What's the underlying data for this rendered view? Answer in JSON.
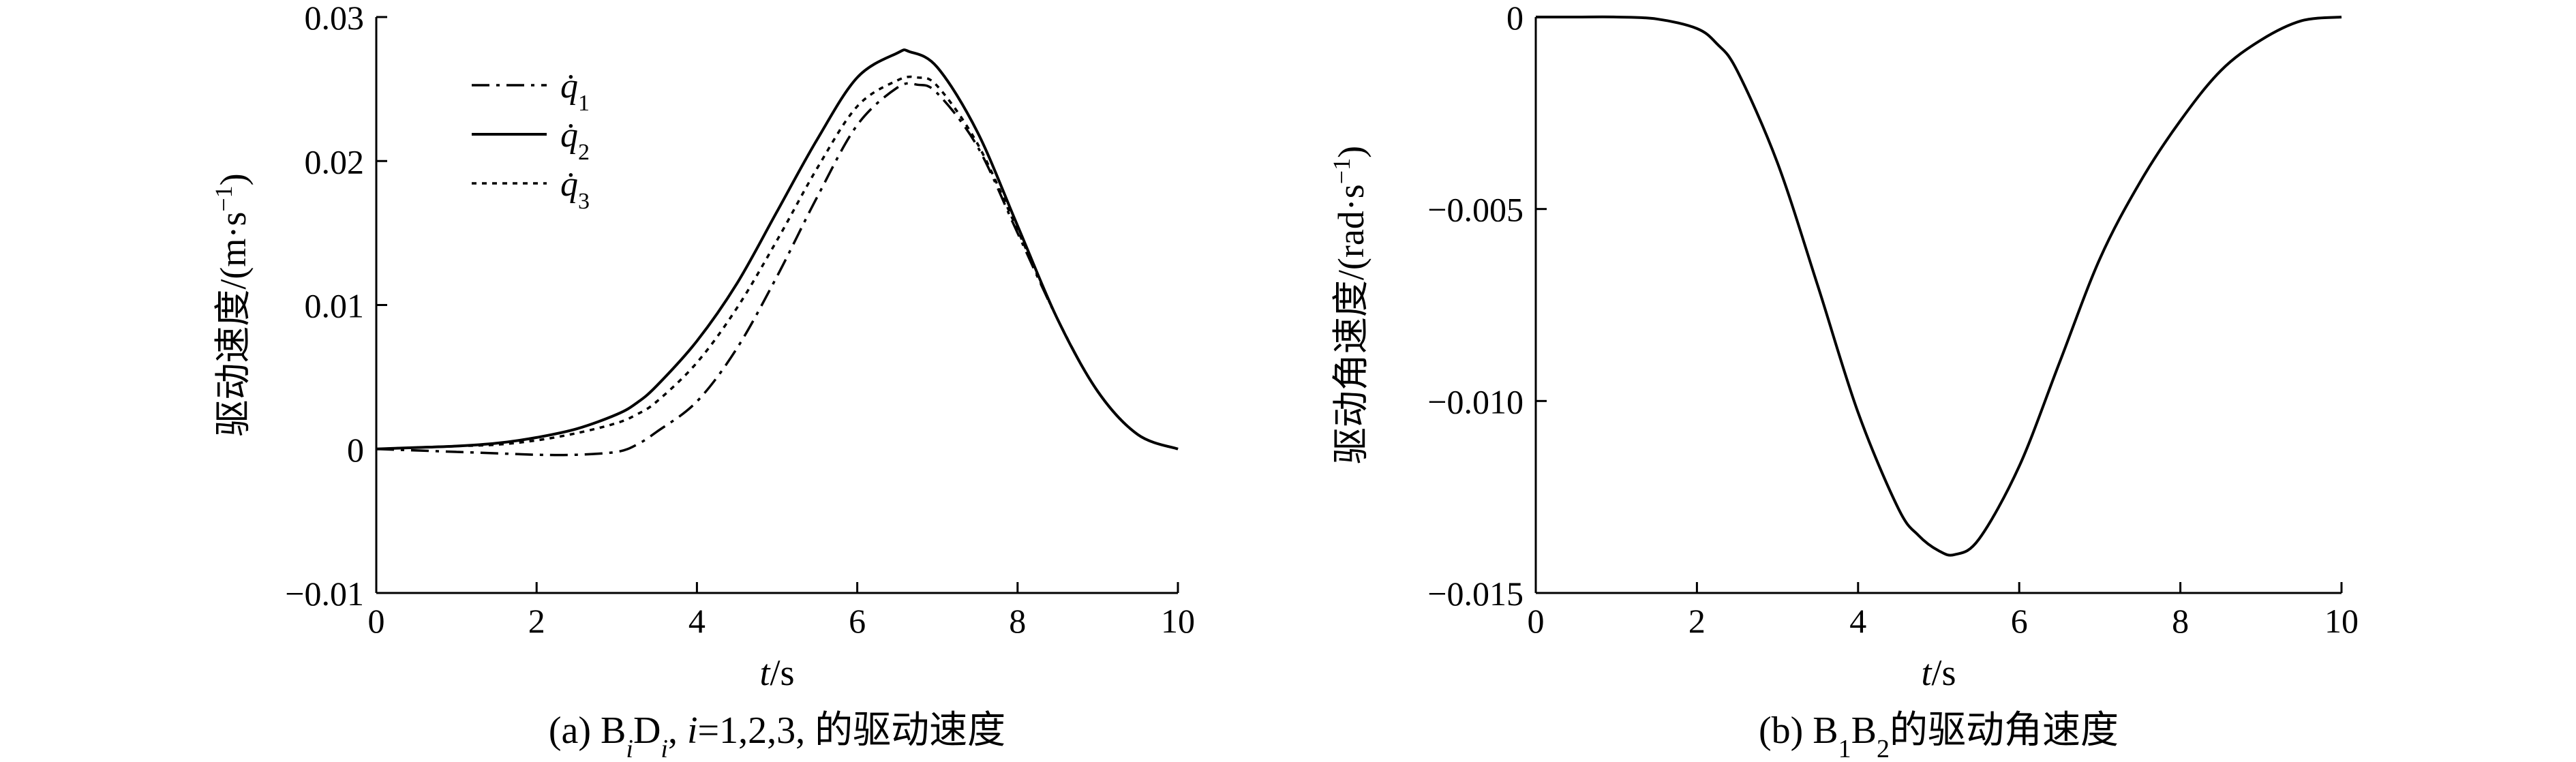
{
  "chart_data": [
    {
      "type": "line",
      "caption": "(a) B_iD_i, i=1,2,3, 的驱动速度",
      "caption_parts": {
        "prefix": "(a) B",
        "sub1": "i",
        "mid": "D",
        "sub2": "i",
        "sep": ", ",
        "ivar": "i",
        "rest": "=1,2,3, 的驱动速度"
      },
      "xlabel_var": "t",
      "xlabel_unit": "/s",
      "ylabel_main": "驱动速度/(m·s",
      "ylabel_sup": "−1",
      "ylabel_close": ")",
      "xlim": [
        0,
        10
      ],
      "ylim": [
        -0.01,
        0.03
      ],
      "xticks": [
        0,
        2,
        4,
        6,
        8,
        10
      ],
      "xtick_labels": [
        "0",
        "2",
        "4",
        "6",
        "8",
        "10"
      ],
      "yticks": [
        -0.01,
        0,
        0.01,
        0.02,
        0.03
      ],
      "ytick_labels": [
        "−0.01",
        "0",
        "0.01",
        "0.02",
        "0.03"
      ],
      "grid": false,
      "legend": "top-left",
      "series": [
        {
          "name": "q̇1",
          "var": "q̇",
          "sub": "1",
          "style": "dashdot",
          "x": [
            0,
            0.5,
            1,
            1.5,
            2,
            2.5,
            3,
            3.25,
            3.5,
            4,
            4.5,
            5,
            5.5,
            6,
            6.5,
            6.75,
            7,
            7.5,
            8,
            8.5,
            9,
            9.5,
            10
          ],
          "y": [
            0,
            -0.0001,
            -0.0002,
            -0.0003,
            -0.0004,
            -0.0004,
            -0.0002,
            0.0003,
            0.0012,
            0.0033,
            0.007,
            0.012,
            0.0175,
            0.0225,
            0.0251,
            0.0253,
            0.0247,
            0.021,
            0.015,
            0.009,
            0.004,
            0.001,
            0
          ]
        },
        {
          "name": "q̇2",
          "var": "q̇",
          "sub": "2",
          "style": "solid",
          "x": [
            0,
            0.5,
            1,
            1.5,
            2,
            2.5,
            3,
            3.25,
            3.5,
            4,
            4.5,
            5,
            5.5,
            6,
            6.5,
            6.65,
            7,
            7.5,
            8,
            8.5,
            9,
            9.5,
            10
          ],
          "y": [
            0,
            0.0001,
            0.0002,
            0.0004,
            0.0008,
            0.0014,
            0.0024,
            0.0032,
            0.0044,
            0.0075,
            0.0115,
            0.0165,
            0.0215,
            0.0258,
            0.0275,
            0.0276,
            0.0265,
            0.022,
            0.0155,
            0.009,
            0.004,
            0.001,
            0
          ]
        },
        {
          "name": "q̇3",
          "var": "q̇",
          "sub": "3",
          "style": "dotted",
          "x": [
            0,
            0.5,
            1,
            1.5,
            2,
            2.5,
            3,
            3.25,
            3.5,
            4,
            4.5,
            5,
            5.5,
            6,
            6.5,
            6.75,
            7,
            7.5,
            8,
            8.5,
            9,
            9.5,
            10
          ],
          "y": [
            0,
            0.0001,
            0.0002,
            0.0003,
            0.0006,
            0.0011,
            0.0018,
            0.0024,
            0.0033,
            0.006,
            0.0098,
            0.0145,
            0.0195,
            0.0238,
            0.0256,
            0.0258,
            0.0252,
            0.0212,
            0.0152,
            0.009,
            0.004,
            0.001,
            0
          ]
        }
      ]
    },
    {
      "type": "line",
      "caption": "(b) B1B2的驱动角速度",
      "caption_parts": {
        "prefix": "(b) B",
        "sub1": "1",
        "mid": "B",
        "sub2": "2",
        "rest": "的驱动角速度"
      },
      "xlabel_var": "t",
      "xlabel_unit": "/s",
      "ylabel_main": "驱动角速度/(rad·s",
      "ylabel_sup": "−1",
      "ylabel_close": ")",
      "xlim": [
        0,
        10
      ],
      "ylim": [
        -0.015,
        0
      ],
      "xticks": [
        0,
        2,
        4,
        6,
        8,
        10
      ],
      "xtick_labels": [
        "0",
        "2",
        "4",
        "6",
        "8",
        "10"
      ],
      "yticks": [
        0,
        -0.005,
        -0.01,
        -0.015
      ],
      "ytick_labels": [
        "0",
        "−0.005",
        "−0.010",
        "−0.015"
      ],
      "grid": false,
      "legend": "none",
      "series": [
        {
          "style": "solid",
          "x": [
            0,
            0.5,
            1,
            1.5,
            2,
            2.25,
            2.5,
            3,
            3.5,
            4,
            4.5,
            4.75,
            5,
            5.2,
            5.5,
            6,
            6.5,
            7,
            7.5,
            8,
            8.5,
            9,
            9.5,
            10
          ],
          "y": [
            0,
            0,
            0,
            -5e-05,
            -0.0003,
            -0.0007,
            -0.0014,
            -0.0038,
            -0.007,
            -0.0103,
            -0.0128,
            -0.0135,
            -0.0139,
            -0.014,
            -0.0136,
            -0.0117,
            -0.009,
            -0.0063,
            -0.0043,
            -0.0027,
            -0.0014,
            -0.0006,
            -0.0001,
            0
          ]
        }
      ]
    }
  ]
}
